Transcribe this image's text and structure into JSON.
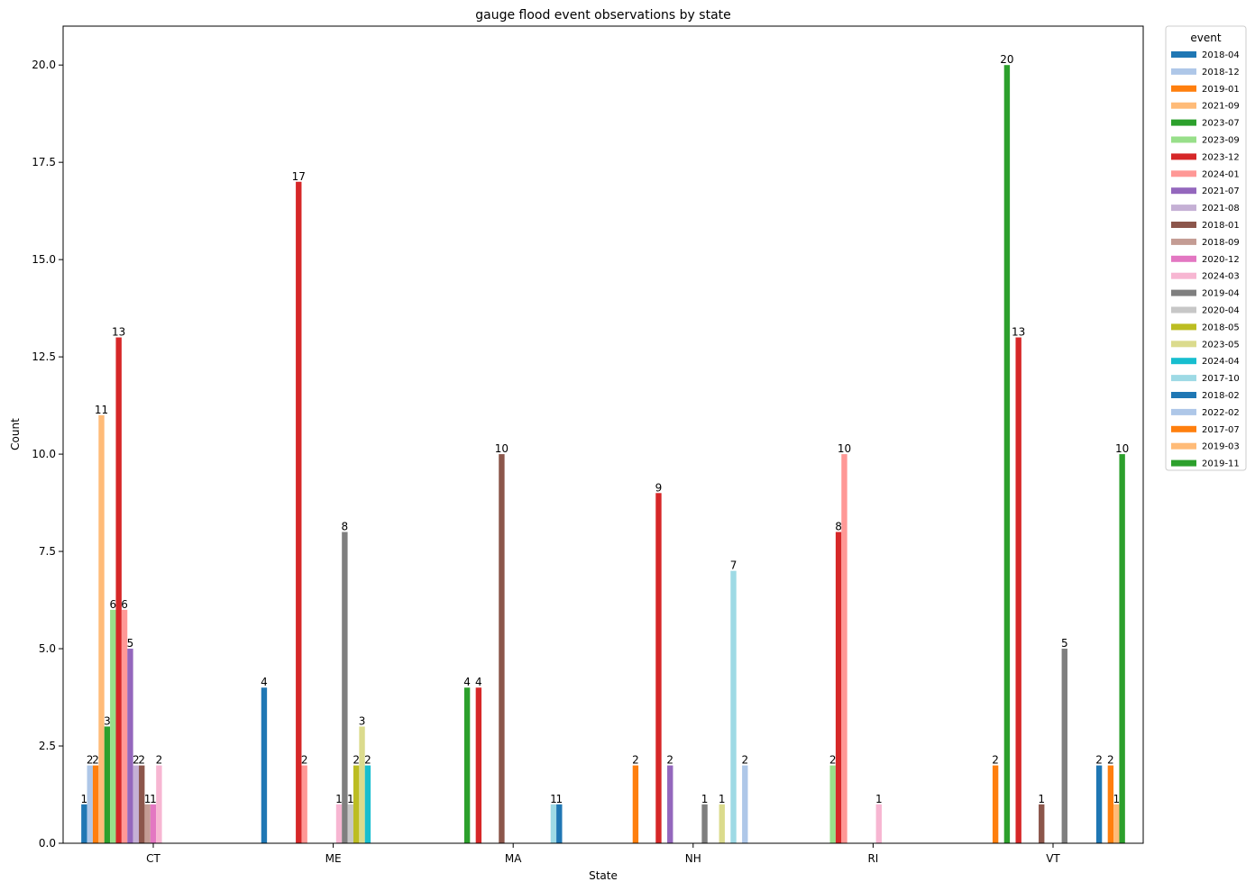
{
  "chart_data": {
    "type": "bar",
    "title": "gauge flood event observations by state",
    "xlabel": "State",
    "ylabel": "Count",
    "ylim": [
      0,
      21
    ],
    "yticks": [
      0.0,
      2.5,
      5.0,
      7.5,
      10.0,
      12.5,
      15.0,
      17.5,
      20.0
    ],
    "ytick_labels": [
      "0.0",
      "2.5",
      "5.0",
      "7.5",
      "10.0",
      "12.5",
      "15.0",
      "17.5",
      "20.0"
    ],
    "categories": [
      "CT",
      "ME",
      "MA",
      "NH",
      "RI",
      "VT"
    ],
    "legend": {
      "title": "event",
      "placement": "outside-right"
    },
    "series": [
      {
        "name": "2018-04",
        "color": "#1f77b4",
        "values": [
          1,
          4,
          null,
          null,
          null,
          null
        ]
      },
      {
        "name": "2018-12",
        "color": "#aec7e8",
        "values": [
          2,
          null,
          null,
          null,
          null,
          null
        ]
      },
      {
        "name": "2019-01",
        "color": "#ff7f0e",
        "values": [
          2,
          null,
          null,
          2,
          null,
          2
        ]
      },
      {
        "name": "2021-09",
        "color": "#ffbb78",
        "values": [
          11,
          null,
          null,
          null,
          null,
          null
        ]
      },
      {
        "name": "2023-07",
        "color": "#2ca02c",
        "values": [
          3,
          null,
          4,
          null,
          null,
          20
        ]
      },
      {
        "name": "2023-09",
        "color": "#98df8a",
        "values": [
          6,
          null,
          null,
          null,
          2,
          null
        ]
      },
      {
        "name": "2023-12",
        "color": "#d62728",
        "values": [
          13,
          17,
          4,
          9,
          8,
          13
        ]
      },
      {
        "name": "2024-01",
        "color": "#ff9896",
        "values": [
          6,
          2,
          null,
          null,
          10,
          null
        ]
      },
      {
        "name": "2021-07",
        "color": "#9467bd",
        "values": [
          5,
          null,
          null,
          2,
          null,
          null
        ]
      },
      {
        "name": "2021-08",
        "color": "#c5b0d5",
        "values": [
          2,
          null,
          null,
          null,
          null,
          null
        ]
      },
      {
        "name": "2018-01",
        "color": "#8c564b",
        "values": [
          2,
          null,
          10,
          null,
          null,
          1
        ]
      },
      {
        "name": "2018-09",
        "color": "#c49c94",
        "values": [
          1,
          null,
          null,
          null,
          null,
          null
        ]
      },
      {
        "name": "2020-12",
        "color": "#e377c2",
        "values": [
          1,
          null,
          null,
          null,
          null,
          null
        ]
      },
      {
        "name": "2024-03",
        "color": "#f7b6d2",
        "values": [
          2,
          1,
          null,
          null,
          1,
          null
        ]
      },
      {
        "name": "2019-04",
        "color": "#7f7f7f",
        "values": [
          null,
          8,
          null,
          1,
          null,
          5
        ]
      },
      {
        "name": "2020-04",
        "color": "#c7c7c7",
        "values": [
          null,
          1,
          null,
          null,
          null,
          null
        ]
      },
      {
        "name": "2018-05",
        "color": "#bcbd22",
        "values": [
          null,
          2,
          null,
          null,
          null,
          null
        ]
      },
      {
        "name": "2023-05",
        "color": "#dbdb8d",
        "values": [
          null,
          3,
          null,
          1,
          null,
          null
        ]
      },
      {
        "name": "2024-04",
        "color": "#17becf",
        "values": [
          null,
          2,
          null,
          null,
          null,
          null
        ]
      },
      {
        "name": "2017-10",
        "color": "#9edae5",
        "values": [
          null,
          null,
          1,
          7,
          null,
          null
        ]
      },
      {
        "name": "2018-02",
        "color": "#1f77b4",
        "values": [
          null,
          null,
          1,
          null,
          null,
          2
        ]
      },
      {
        "name": "2022-02",
        "color": "#aec7e8",
        "values": [
          null,
          null,
          null,
          2,
          null,
          null
        ]
      },
      {
        "name": "2017-07",
        "color": "#ff7f0e",
        "values": [
          null,
          null,
          null,
          null,
          null,
          2
        ]
      },
      {
        "name": "2019-03",
        "color": "#ffbb78",
        "values": [
          null,
          null,
          null,
          null,
          null,
          1
        ]
      },
      {
        "name": "2019-11",
        "color": "#2ca02c",
        "values": [
          null,
          null,
          null,
          null,
          null,
          10
        ]
      }
    ]
  }
}
